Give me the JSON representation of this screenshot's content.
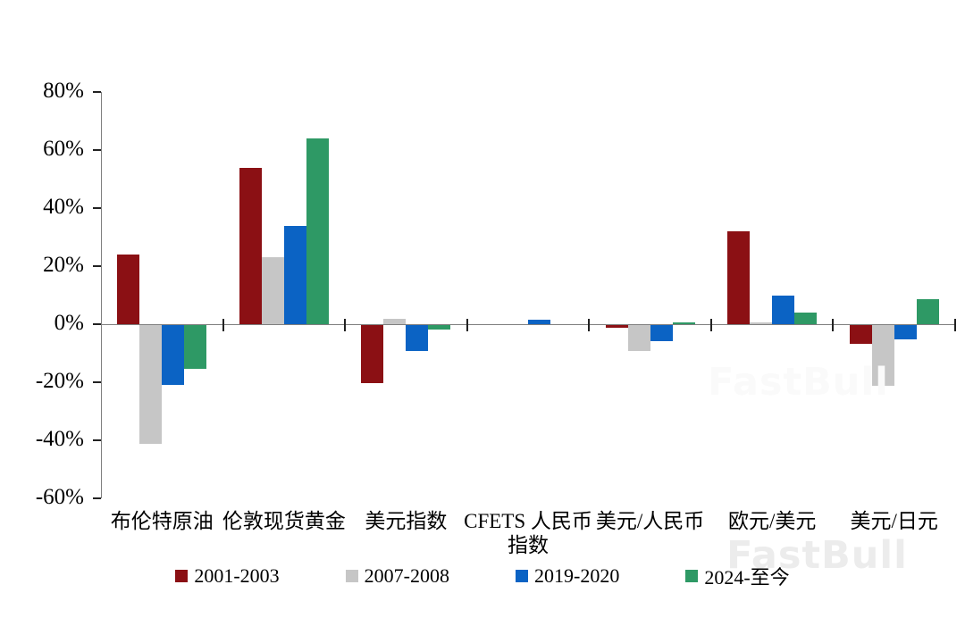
{
  "watermark": "FastBull",
  "chart_data": {
    "type": "bar",
    "title": "",
    "xlabel": "",
    "ylabel": "",
    "categories": [
      "布伦特原油",
      "伦敦现货黄金",
      "美元指数",
      "CFETS 人民币\n指数",
      "美元/人民币",
      "欧元/美元",
      "美元/日元"
    ],
    "series": [
      {
        "name": "2001-2003",
        "color": "#8b1014",
        "values": [
          24,
          54,
          -20,
          0,
          -1,
          32,
          -6.5
        ]
      },
      {
        "name": "2007-2008",
        "color": "#c6c6c6",
        "values": [
          -41,
          23,
          2,
          0,
          -9,
          0.5,
          -21
        ]
      },
      {
        "name": "2019-2020",
        "color": "#0b63c4",
        "values": [
          -20.5,
          34,
          -9,
          1.5,
          -5.5,
          10,
          -5
        ]
      },
      {
        "name": "2024-至今",
        "color": "#2e9965",
        "values": [
          -15,
          64,
          -1.5,
          0,
          0.5,
          4,
          8.5
        ]
      }
    ],
    "ylim": [
      -60,
      80
    ],
    "ytick_step": 20,
    "ytick_labels": [
      "80%",
      "60%",
      "40%",
      "20%",
      "0%",
      "-20%",
      "-40%",
      "-60%"
    ],
    "grid": false,
    "legend_position": "bottom",
    "axis_color": "#7f7f7f",
    "tick_color": "#222222"
  }
}
